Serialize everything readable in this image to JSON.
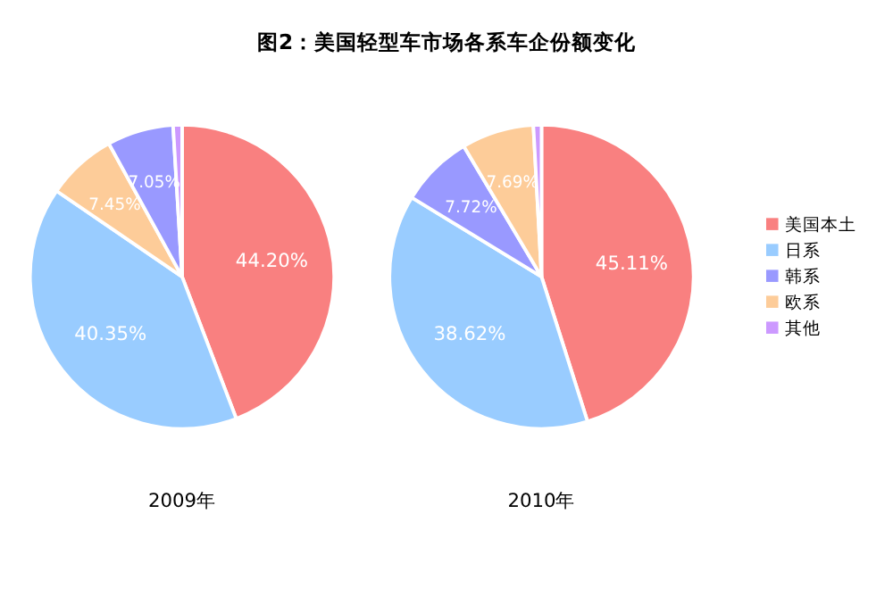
{
  "chart_data": [
    {
      "type": "pie",
      "title": "图2：美国轻型车市场各系车企份额变化",
      "xlabel": "2009年",
      "categories": [
        null,
        null,
        null,
        null,
        null
      ],
      "values": [
        44.2,
        40.35,
        7.45,
        7.05,
        0.95
      ],
      "colors": [
        "#f98080",
        "#99ccff",
        "#fdcc99",
        "#9999ff",
        "#cc99ff"
      ],
      "value_labels": [
        "44.20%",
        "40.35%",
        "7.45%",
        "7.05%",
        null
      ]
    },
    {
      "type": "pie",
      "xlabel": "2010年",
      "categories": [
        "美国本土",
        "日系",
        "韩系",
        "欧系",
        "其他"
      ],
      "values": [
        45.11,
        38.62,
        7.72,
        7.69,
        0.86
      ],
      "colors": [
        "#f98080",
        "#99ccff",
        "#9999ff",
        "#fdcc99",
        "#cc99ff"
      ],
      "value_labels": [
        "45.11%",
        "38.62%",
        "7.72%",
        "7.69%",
        null
      ],
      "legend": "right"
    }
  ]
}
